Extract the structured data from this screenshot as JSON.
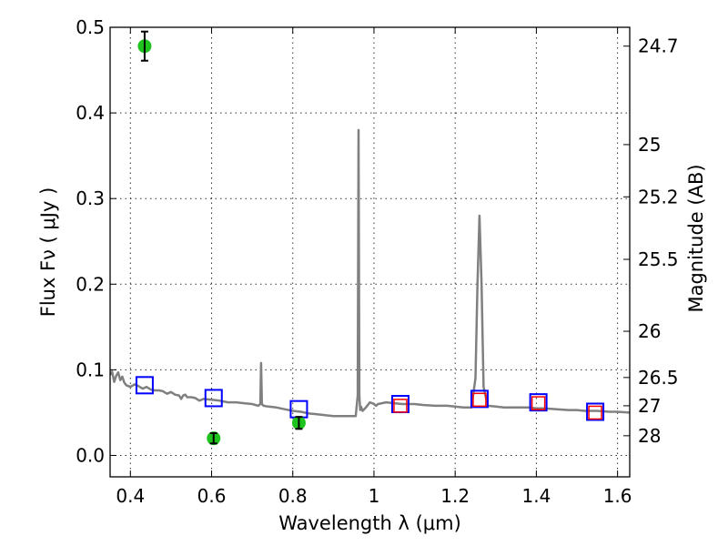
{
  "chart_data": {
    "type": "scatter",
    "xlabel": "Wavelength  λ (μm)",
    "ylabel": "Flux  Fν  ( μJy )",
    "y2label": "Magnitude (AB)",
    "xlim": [
      0.35,
      1.63
    ],
    "ylim": [
      -0.025,
      0.5
    ],
    "grid": true,
    "x_ticks": [
      0.4,
      0.6,
      0.8,
      1.0,
      1.2,
      1.4,
      1.6
    ],
    "x_tick_labels": [
      "0.4",
      "0.6",
      "0.8",
      "1",
      "1.2",
      "1.4",
      "1.6"
    ],
    "y_ticks": [
      0.0,
      0.1,
      0.2,
      0.3,
      0.4,
      0.5
    ],
    "y_tick_labels": [
      "0.0",
      "0.1",
      "0.2",
      "0.3",
      "0.4",
      "0.5"
    ],
    "y2_ticks": [
      {
        "label": "24.7",
        "flux": 0.478
      },
      {
        "label": "25",
        "flux": 0.363
      },
      {
        "label": "25.2",
        "flux": 0.302
      },
      {
        "label": "25.5",
        "flux": 0.229
      },
      {
        "label": "26",
        "flux": 0.145
      },
      {
        "label": "26.5",
        "flux": 0.091
      },
      {
        "label": "27",
        "flux": 0.058
      },
      {
        "label": "28",
        "flux": 0.023
      }
    ],
    "series": [
      {
        "type": "line",
        "color": "#808080",
        "x": [
          0.35,
          0.355,
          0.36,
          0.365,
          0.37,
          0.375,
          0.38,
          0.385,
          0.39,
          0.4,
          0.41,
          0.42,
          0.43,
          0.44,
          0.45,
          0.46,
          0.47,
          0.48,
          0.49,
          0.5,
          0.51,
          0.52,
          0.525,
          0.53,
          0.535,
          0.54,
          0.55,
          0.56,
          0.57,
          0.58,
          0.6,
          0.62,
          0.64,
          0.66,
          0.68,
          0.7,
          0.715,
          0.72,
          0.722,
          0.724,
          0.728,
          0.74,
          0.76,
          0.78,
          0.8,
          0.82,
          0.84,
          0.86,
          0.88,
          0.9,
          0.92,
          0.94,
          0.955,
          0.96,
          0.962,
          0.964,
          0.966,
          0.968,
          0.972,
          0.98,
          0.99,
          1.0,
          1.005,
          1.01,
          1.03,
          1.05,
          1.07,
          1.1,
          1.12,
          1.15,
          1.18,
          1.2,
          1.22,
          1.24,
          1.25,
          1.255,
          1.26,
          1.265,
          1.27,
          1.28,
          1.3,
          1.32,
          1.35,
          1.38,
          1.4,
          1.42,
          1.45,
          1.48,
          1.5,
          1.52,
          1.55,
          1.58,
          1.6,
          1.63
        ],
        "y": [
          0.094,
          0.098,
          0.086,
          0.093,
          0.097,
          0.088,
          0.092,
          0.085,
          0.082,
          0.08,
          0.083,
          0.081,
          0.078,
          0.08,
          0.077,
          0.076,
          0.076,
          0.075,
          0.072,
          0.074,
          0.071,
          0.07,
          0.066,
          0.07,
          0.071,
          0.068,
          0.068,
          0.067,
          0.064,
          0.066,
          0.065,
          0.064,
          0.062,
          0.062,
          0.061,
          0.06,
          0.058,
          0.06,
          0.108,
          0.06,
          0.058,
          0.057,
          0.056,
          0.054,
          0.052,
          0.051,
          0.049,
          0.048,
          0.047,
          0.046,
          0.046,
          0.046,
          0.046,
          0.07,
          0.38,
          0.07,
          0.053,
          0.057,
          0.052,
          0.056,
          0.062,
          0.06,
          0.058,
          0.06,
          0.062,
          0.061,
          0.06,
          0.06,
          0.059,
          0.058,
          0.058,
          0.057,
          0.056,
          0.056,
          0.09,
          0.2,
          0.28,
          0.2,
          0.08,
          0.058,
          0.057,
          0.056,
          0.056,
          0.056,
          0.055,
          0.055,
          0.054,
          0.053,
          0.053,
          0.052,
          0.052,
          0.051,
          0.051,
          0.05
        ]
      },
      {
        "type": "open-square",
        "color": "#0000ff",
        "x": [
          0.435,
          0.605,
          0.815,
          1.065,
          1.26,
          1.405,
          1.545
        ],
        "y": [
          0.082,
          0.067,
          0.054,
          0.06,
          0.066,
          0.062,
          0.051
        ]
      },
      {
        "type": "open-square",
        "color": "#ff0000",
        "x": [
          1.065,
          1.26,
          1.405,
          1.545
        ],
        "y": [
          0.058,
          0.065,
          0.061,
          0.05
        ]
      },
      {
        "type": "filled-circle-errorbar",
        "color": "#1ec31e",
        "x": [
          0.435,
          0.605,
          0.815
        ],
        "y": [
          0.478,
          0.02,
          0.038
        ],
        "yerr": [
          0.017,
          0.006,
          0.007
        ]
      }
    ]
  }
}
